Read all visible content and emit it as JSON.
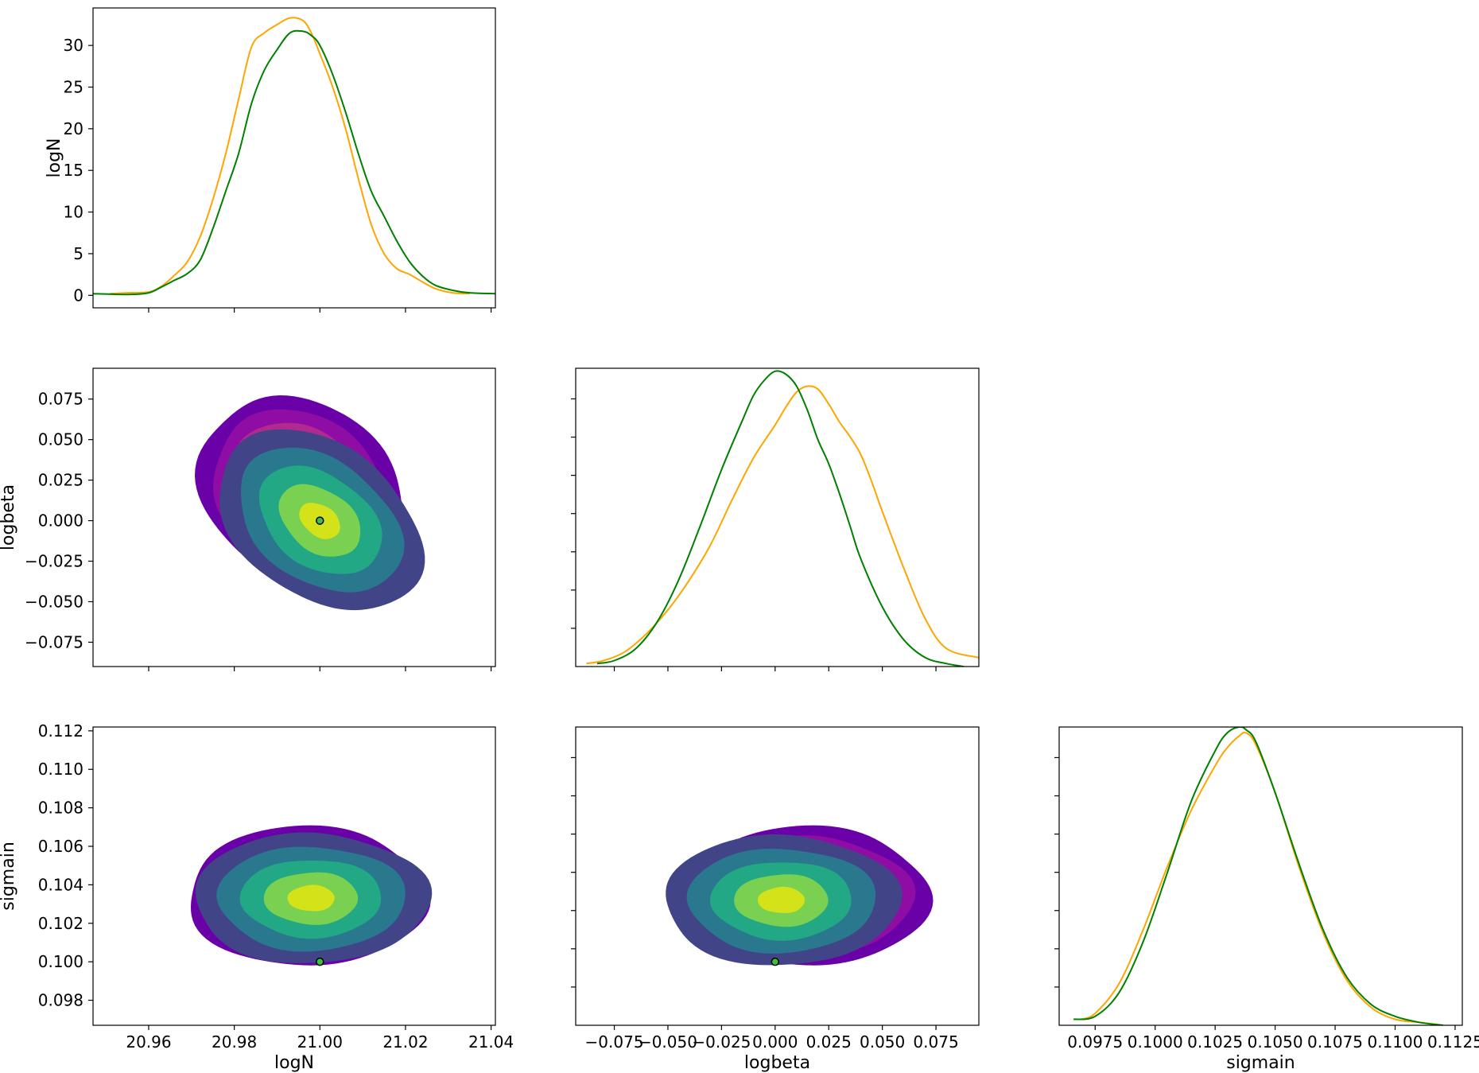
{
  "figure": {
    "type": "corner-plot",
    "parameters": [
      "logN",
      "logbeta",
      "sigmain"
    ],
    "series_colors": {
      "orange": "#ffa500",
      "green": "#008000"
    },
    "contour_colors_orange": [
      "#6a00a8",
      "#8f0da4",
      "#b12a90",
      "#cc4778"
    ],
    "contour_colors_green": [
      "#414487",
      "#2a788e",
      "#22a884",
      "#7ad151",
      "#d4e21a"
    ]
  },
  "chart_data": [
    {
      "panel": "logN-marginal",
      "type": "line",
      "xlabel": "",
      "ylabel": "logN",
      "xlim": [
        20.947,
        21.041
      ],
      "ylim": [
        -1.5,
        34.5
      ],
      "xticks": [
        20.96,
        20.98,
        21.0,
        21.02,
        21.04
      ],
      "yticks": [
        0,
        5,
        10,
        15,
        20,
        25,
        30
      ],
      "ytick_labels": [
        "0",
        "5",
        "10",
        "15",
        "20",
        "25",
        "30"
      ],
      "series": [
        {
          "color": "orange",
          "x": [
            20.951,
            20.955,
            20.96,
            20.963,
            20.966,
            20.969,
            20.972,
            20.975,
            20.978,
            20.981,
            20.984,
            20.987,
            20.99,
            20.993,
            20.996,
            20.998,
            21.0,
            21.003,
            21.006,
            21.009,
            21.012,
            21.015,
            21.018,
            21.021,
            21.024,
            21.027,
            21.031,
            21.035
          ],
          "y": [
            0.2,
            0.3,
            0.4,
            1.1,
            2.4,
            4.0,
            7.0,
            11.5,
            17.0,
            23.5,
            29.8,
            31.5,
            32.5,
            33.3,
            33.0,
            31.5,
            29.0,
            25.0,
            20.0,
            14.0,
            8.5,
            5.0,
            3.2,
            2.5,
            1.6,
            0.8,
            0.3,
            0.2
          ]
        },
        {
          "color": "green",
          "x": [
            20.947,
            20.955,
            20.96,
            20.963,
            20.966,
            20.969,
            20.972,
            20.975,
            20.978,
            20.981,
            20.984,
            20.987,
            20.99,
            20.993,
            20.996,
            20.998,
            21.0,
            21.003,
            21.006,
            21.009,
            21.012,
            21.015,
            21.018,
            21.021,
            21.024,
            21.027,
            21.031,
            21.035,
            21.041
          ],
          "y": [
            0.2,
            0.1,
            0.3,
            1.0,
            1.8,
            2.6,
            4.2,
            8.0,
            12.5,
            17.0,
            23.0,
            27.0,
            29.5,
            31.5,
            31.7,
            31.2,
            30.0,
            26.5,
            22.0,
            17.0,
            12.5,
            9.5,
            6.5,
            4.0,
            2.3,
            1.2,
            0.6,
            0.3,
            0.2
          ]
        }
      ]
    },
    {
      "panel": "logN-vs-logbeta",
      "type": "contour",
      "xlabel": "",
      "ylabel": "logbeta",
      "xlim": [
        20.947,
        21.041
      ],
      "ylim": [
        -0.09,
        0.094
      ],
      "xticks": [
        20.96,
        20.98,
        21.0,
        21.02,
        21.04
      ],
      "yticks": [
        -0.075,
        -0.05,
        -0.025,
        0.0,
        0.025,
        0.05,
        0.075
      ],
      "ytick_labels": [
        "−0.075",
        "−0.050",
        "−0.025",
        "0.000",
        "0.025",
        "0.050",
        "0.075"
      ],
      "orange_center": [
        20.996,
        0.017
      ],
      "green_center": [
        21.0,
        0.0
      ],
      "truth": [
        21.0,
        0.0
      ]
    },
    {
      "panel": "logbeta-marginal",
      "type": "line",
      "xlabel": "",
      "ylabel": "",
      "xlim": [
        -0.093,
        0.095
      ],
      "ylim": [
        0,
        1
      ],
      "xticks": [
        -0.075,
        -0.05,
        -0.025,
        0.0,
        0.025,
        0.05,
        0.075
      ],
      "series": [
        {
          "color": "orange",
          "x": [
            -0.088,
            -0.08,
            -0.07,
            -0.06,
            -0.05,
            -0.04,
            -0.03,
            -0.02,
            -0.01,
            0.0,
            0.005,
            0.01,
            0.015,
            0.02,
            0.025,
            0.03,
            0.035,
            0.04,
            0.045,
            0.05,
            0.06,
            0.07,
            0.08,
            0.095
          ],
          "y": [
            0.01,
            0.02,
            0.05,
            0.11,
            0.19,
            0.29,
            0.41,
            0.56,
            0.7,
            0.81,
            0.87,
            0.92,
            0.94,
            0.93,
            0.88,
            0.82,
            0.77,
            0.71,
            0.62,
            0.52,
            0.33,
            0.16,
            0.06,
            0.03
          ]
        },
        {
          "color": "green",
          "x": [
            -0.083,
            -0.075,
            -0.065,
            -0.055,
            -0.045,
            -0.035,
            -0.025,
            -0.015,
            -0.01,
            -0.005,
            0.0,
            0.005,
            0.01,
            0.015,
            0.02,
            0.025,
            0.03,
            0.035,
            0.04,
            0.05,
            0.06,
            0.07,
            0.08,
            0.088
          ],
          "y": [
            0.01,
            0.02,
            0.06,
            0.15,
            0.29,
            0.47,
            0.66,
            0.83,
            0.91,
            0.96,
            0.99,
            0.98,
            0.94,
            0.86,
            0.76,
            0.68,
            0.58,
            0.47,
            0.36,
            0.2,
            0.09,
            0.03,
            0.01,
            0.0
          ]
        }
      ]
    },
    {
      "panel": "logN-vs-sigmain",
      "type": "contour",
      "xlabel": "logN",
      "ylabel": "sigmain",
      "xlim": [
        20.947,
        21.041
      ],
      "ylim": [
        0.0967,
        0.1122
      ],
      "xticks": [
        20.96,
        20.98,
        21.0,
        21.02,
        21.04
      ],
      "xtick_labels": [
        "20.96",
        "20.98",
        "21.00",
        "21.02",
        "21.04"
      ],
      "yticks": [
        0.098,
        0.1,
        0.102,
        0.104,
        0.106,
        0.108,
        0.11,
        0.112
      ],
      "ytick_labels": [
        "0.098",
        "0.100",
        "0.102",
        "0.104",
        "0.106",
        "0.108",
        "0.110",
        "0.112"
      ],
      "orange_center": [
        20.997,
        0.1034
      ],
      "green_center": [
        20.998,
        0.1033
      ],
      "truth": [
        21.0,
        0.1
      ]
    },
    {
      "panel": "logbeta-vs-sigmain",
      "type": "contour",
      "xlabel": "logbeta",
      "ylabel": "",
      "xlim": [
        -0.093,
        0.095
      ],
      "ylim": [
        0.0967,
        0.1122
      ],
      "xticks": [
        -0.075,
        -0.05,
        -0.025,
        0.0,
        0.025,
        0.05,
        0.075
      ],
      "xtick_labels": [
        "−0.075",
        "−0.050",
        "−0.025",
        "0.000",
        "0.025",
        "0.050",
        "0.075"
      ],
      "orange_center": [
        0.016,
        0.1034
      ],
      "green_center": [
        0.003,
        0.1032
      ],
      "truth": [
        0.0,
        0.1
      ]
    },
    {
      "panel": "sigmain-marginal",
      "type": "line",
      "xlabel": "sigmain",
      "ylabel": "",
      "xlim": [
        0.096,
        0.1128
      ],
      "ylim": [
        0,
        1
      ],
      "xticks": [
        0.0975,
        0.1,
        0.1025,
        0.105,
        0.1075,
        0.11,
        0.1125
      ],
      "xtick_labels": [
        "0.0975",
        "0.1000",
        "0.1025",
        "0.1050",
        "0.1075",
        "0.1100",
        "0.1125"
      ],
      "series": [
        {
          "color": "orange",
          "x": [
            0.0969,
            0.0975,
            0.0985,
            0.0995,
            0.1005,
            0.1015,
            0.1025,
            0.103,
            0.1035,
            0.1038,
            0.1042,
            0.105,
            0.106,
            0.107,
            0.108,
            0.109,
            0.11,
            0.111,
            0.112
          ],
          "y": [
            0.02,
            0.04,
            0.14,
            0.32,
            0.53,
            0.72,
            0.87,
            0.93,
            0.97,
            0.98,
            0.94,
            0.78,
            0.53,
            0.31,
            0.15,
            0.06,
            0.02,
            0.01,
            0.0
          ]
        },
        {
          "color": "green",
          "x": [
            0.0966,
            0.0975,
            0.0985,
            0.0995,
            0.1005,
            0.1015,
            0.1025,
            0.103,
            0.1035,
            0.1038,
            0.1042,
            0.105,
            0.106,
            0.107,
            0.108,
            0.109,
            0.11,
            0.111,
            0.112
          ],
          "y": [
            0.02,
            0.03,
            0.11,
            0.28,
            0.51,
            0.75,
            0.92,
            0.98,
            1.0,
            0.99,
            0.95,
            0.78,
            0.54,
            0.32,
            0.16,
            0.07,
            0.03,
            0.01,
            0.0
          ]
        }
      ]
    }
  ]
}
